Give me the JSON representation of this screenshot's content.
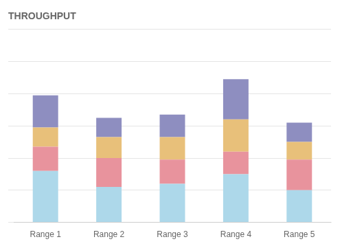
{
  "chart_data": {
    "type": "bar",
    "title": "THROUGHPUT",
    "categories": [
      "Range 1",
      "Range 2",
      "Range 3",
      "Range 4",
      "Range 5"
    ],
    "series": [
      {
        "color": "#add8ea",
        "values": [
          3.2,
          2.2,
          2.4,
          3.0,
          2.0
        ]
      },
      {
        "color": "#e8939d",
        "values": [
          1.5,
          1.8,
          1.5,
          1.4,
          1.9
        ]
      },
      {
        "color": "#e8c07a",
        "values": [
          1.2,
          1.3,
          1.4,
          2.0,
          1.1
        ]
      },
      {
        "color": "#8e8ec0",
        "values": [
          2.0,
          1.2,
          1.4,
          2.5,
          1.2
        ]
      }
    ],
    "stacked": true,
    "ylim": [
      0,
      12
    ],
    "yticks": [
      0,
      2,
      4,
      6,
      8,
      10,
      12
    ],
    "grid": true,
    "tick_labels": "x"
  }
}
